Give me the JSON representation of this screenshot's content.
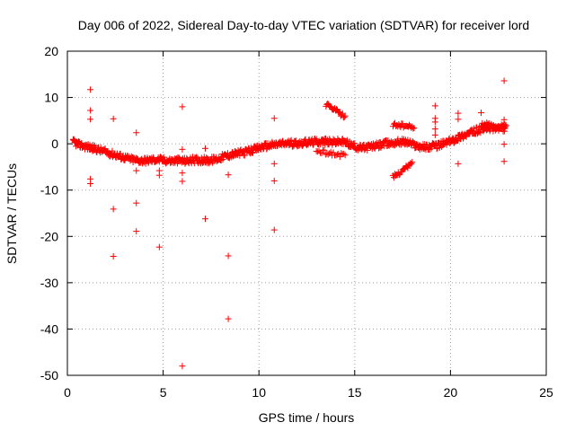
{
  "chart_data": {
    "type": "scatter",
    "title": "Day 006 of 2022, Sidereal Day-to-day VTEC variation (SDTVAR) for receiver lord",
    "xlabel": "GPS time / hours",
    "ylabel": "SDTVAR / TECUs",
    "xlim": [
      0,
      25
    ],
    "ylim": [
      -50,
      20
    ],
    "x_ticks": [
      0,
      5,
      10,
      15,
      20,
      25
    ],
    "x_tick_labels": [
      "0",
      "5",
      "10",
      "15",
      "20",
      "25"
    ],
    "y_ticks": [
      -50,
      -40,
      -30,
      -20,
      -10,
      0,
      10,
      20
    ],
    "y_tick_labels": [
      "-50",
      "-40",
      "-30",
      "-20",
      "-10",
      "0",
      "10",
      "20"
    ],
    "grid": true,
    "marker": "+",
    "color": "#ff0000",
    "main_track": [
      [
        0.3,
        0.4
      ],
      [
        0.6,
        -0.2
      ],
      [
        1.0,
        -0.6
      ],
      [
        1.4,
        -1.0
      ],
      [
        1.8,
        -1.5
      ],
      [
        2.2,
        -2.0
      ],
      [
        2.6,
        -2.5
      ],
      [
        3.0,
        -3.0
      ],
      [
        3.4,
        -3.4
      ],
      [
        3.8,
        -3.6
      ],
      [
        4.2,
        -3.6
      ],
      [
        4.6,
        -3.4
      ],
      [
        5.0,
        -3.5
      ],
      [
        5.4,
        -3.7
      ],
      [
        5.8,
        -3.6
      ],
      [
        6.2,
        -3.7
      ],
      [
        6.6,
        -3.5
      ],
      [
        7.0,
        -3.5
      ],
      [
        7.4,
        -3.6
      ],
      [
        7.8,
        -3.3
      ],
      [
        8.2,
        -2.7
      ],
      [
        8.6,
        -2.3
      ],
      [
        9.0,
        -2.0
      ],
      [
        9.4,
        -1.7
      ],
      [
        9.8,
        -1.2
      ],
      [
        10.2,
        -0.6
      ],
      [
        10.6,
        -0.3
      ],
      [
        11.0,
        -0.1
      ],
      [
        11.4,
        0.1
      ],
      [
        11.8,
        0.1
      ],
      [
        12.2,
        0.2
      ],
      [
        12.6,
        0.3
      ],
      [
        13.0,
        0.5
      ],
      [
        13.4,
        0.5
      ],
      [
        13.8,
        0.3
      ],
      [
        14.2,
        0.5
      ],
      [
        14.6,
        0.2
      ],
      [
        15.0,
        -0.6
      ],
      [
        15.4,
        -0.9
      ],
      [
        15.8,
        -0.6
      ],
      [
        16.2,
        -0.4
      ],
      [
        16.6,
        0.0
      ],
      [
        17.0,
        0.2
      ],
      [
        17.4,
        0.5
      ],
      [
        17.8,
        0.3
      ],
      [
        18.2,
        -0.4
      ],
      [
        18.6,
        -0.7
      ],
      [
        19.0,
        -0.6
      ],
      [
        19.4,
        -0.3
      ],
      [
        19.8,
        0.3
      ],
      [
        20.2,
        0.9
      ],
      [
        20.6,
        1.7
      ],
      [
        21.0,
        2.3
      ],
      [
        21.4,
        2.9
      ],
      [
        21.8,
        3.3
      ],
      [
        22.2,
        3.4
      ],
      [
        22.6,
        3.2
      ],
      [
        22.9,
        3.3
      ]
    ],
    "secondary_arcs": [
      {
        "x_start": 13.5,
        "x_end": 14.5,
        "y_start": 8.5,
        "y_end": 5.8
      },
      {
        "x_start": 13.0,
        "x_end": 14.5,
        "y_start": -1.5,
        "y_end": -2.6
      },
      {
        "x_start": 17.0,
        "x_end": 18.0,
        "y_start": -7.2,
        "y_end": -4.2
      },
      {
        "x_start": 17.0,
        "x_end": 18.1,
        "y_start": 4.2,
        "y_end": 3.5
      },
      {
        "x_start": 21.6,
        "x_end": 22.9,
        "y_start": 4.3,
        "y_end": 3.8
      }
    ],
    "outliers": [
      [
        1.2,
        11.7
      ],
      [
        1.2,
        7.2
      ],
      [
        1.2,
        5.3
      ],
      [
        1.2,
        -7.6
      ],
      [
        1.2,
        -8.6
      ],
      [
        2.4,
        5.4
      ],
      [
        2.4,
        -14.1
      ],
      [
        2.4,
        -24.3
      ],
      [
        3.6,
        2.4
      ],
      [
        3.6,
        -5.8
      ],
      [
        3.6,
        -12.8
      ],
      [
        3.6,
        -18.9
      ],
      [
        4.8,
        -5.8
      ],
      [
        4.8,
        -6.8
      ],
      [
        4.8,
        -22.3
      ],
      [
        6.0,
        8.0
      ],
      [
        6.0,
        -1.2
      ],
      [
        6.0,
        -6.3
      ],
      [
        6.0,
        -8.1
      ],
      [
        6.0,
        -48.0
      ],
      [
        7.2,
        -1.0
      ],
      [
        7.2,
        -16.2
      ],
      [
        8.4,
        -6.7
      ],
      [
        8.4,
        -24.2
      ],
      [
        8.4,
        -37.8
      ],
      [
        10.8,
        5.5
      ],
      [
        10.8,
        -4.3
      ],
      [
        10.8,
        -8.0
      ],
      [
        10.8,
        -18.6
      ],
      [
        19.2,
        8.2
      ],
      [
        19.2,
        5.5
      ],
      [
        19.2,
        4.7
      ],
      [
        19.2,
        3.2
      ],
      [
        19.2,
        1.9
      ],
      [
        20.4,
        6.6
      ],
      [
        20.4,
        5.3
      ],
      [
        20.4,
        1.9
      ],
      [
        20.4,
        -4.3
      ],
      [
        21.6,
        6.7
      ],
      [
        22.8,
        13.6
      ],
      [
        22.8,
        5.2
      ],
      [
        22.8,
        -0.1
      ],
      [
        22.8,
        -3.8
      ]
    ]
  }
}
